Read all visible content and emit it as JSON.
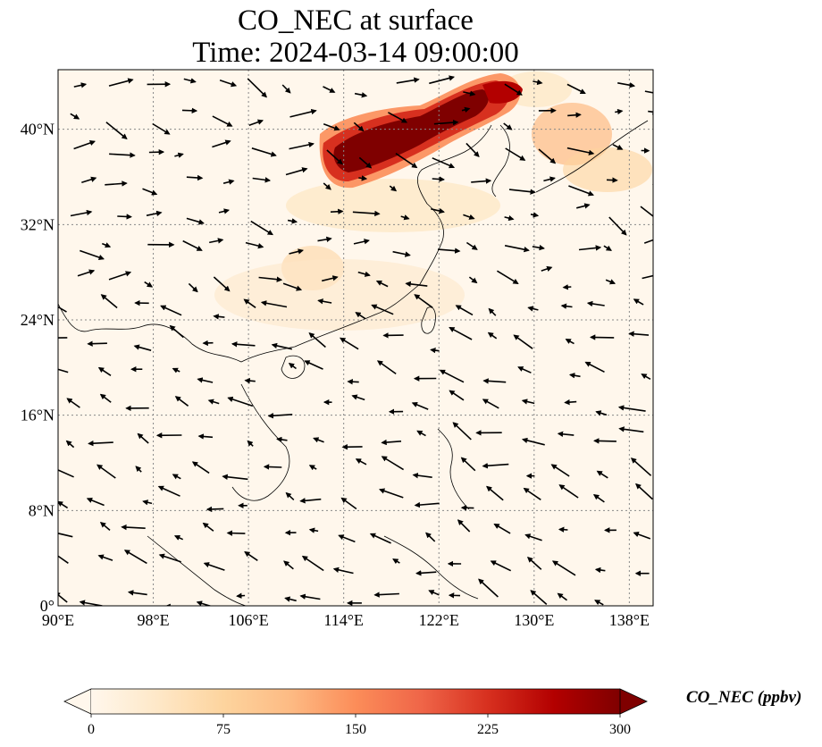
{
  "title": {
    "line1": "CO_NEC at surface",
    "line2": "Time: 2024-03-14 09:00:00"
  },
  "map": {
    "extent": {
      "lon": [
        90,
        140
      ],
      "lat": [
        0,
        45
      ]
    },
    "lat_ticks": [
      {
        "value": 0,
        "label": "0°"
      },
      {
        "value": 8,
        "label": "8°N"
      },
      {
        "value": 16,
        "label": "16°N"
      },
      {
        "value": 24,
        "label": "24°N"
      },
      {
        "value": 32,
        "label": "32°N"
      },
      {
        "value": 40,
        "label": "40°N"
      }
    ],
    "lon_ticks": [
      {
        "value": 90,
        "label": "90°E"
      },
      {
        "value": 98,
        "label": "98°E"
      },
      {
        "value": 106,
        "label": "106°E"
      },
      {
        "value": 114,
        "label": "114°E"
      },
      {
        "value": 122,
        "label": "122°E"
      },
      {
        "value": 130,
        "label": "130°E"
      },
      {
        "value": 138,
        "label": "138°E"
      }
    ],
    "gridlines": true,
    "background_color": "#fff7ec",
    "vector_field": "wind arrows",
    "high_concentration_region": "North China Plain / Korea plume"
  },
  "colorbar": {
    "label": "CO_NEC (ppbv)",
    "ticks": [
      "0",
      "75",
      "150",
      "225",
      "300"
    ],
    "min": 0,
    "max": 300,
    "colormap": [
      "#fff7ec",
      "#fee8c8",
      "#fdd49e",
      "#fdbb84",
      "#fc8d59",
      "#ef6548",
      "#d7301f",
      "#b30000",
      "#7f0000"
    ],
    "extend": "both"
  }
}
